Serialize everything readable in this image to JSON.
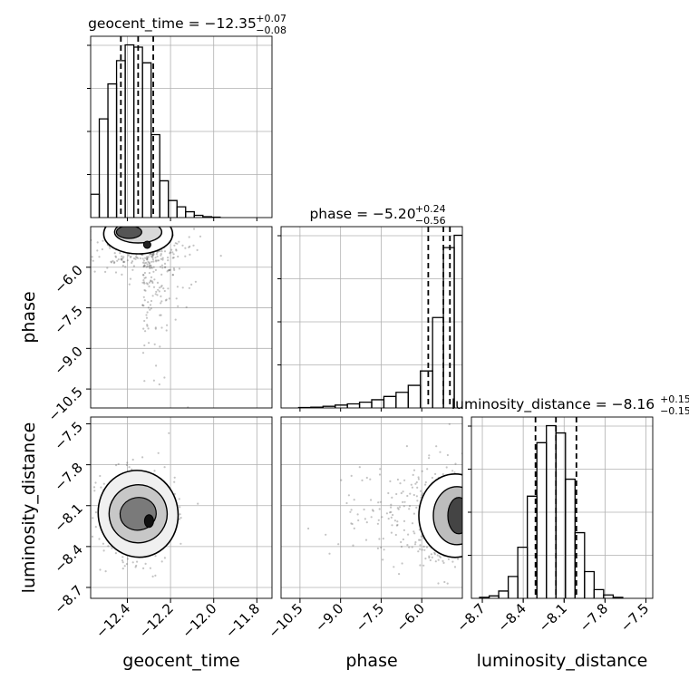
{
  "chart_data": {
    "type": "scatter",
    "figure_kind": "corner plot",
    "parameters": [
      "geocent_time",
      "phase",
      "luminosity_distance"
    ],
    "axis_labels": {
      "x": [
        "geocent_time",
        "phase",
        "luminosity_distance"
      ],
      "y": [
        "phase",
        "luminosity_distance"
      ]
    },
    "grid": true,
    "titles": [
      {
        "param": "geocent_time",
        "prefix": "geocent_time = ",
        "median": "−12.35",
        "plus": "+0.07",
        "minus": "−0.08"
      },
      {
        "param": "phase",
        "prefix": "phase = ",
        "median": "−5.20",
        "plus": "+0.24",
        "minus": "−0.56"
      },
      {
        "param": "luminosity_distance",
        "prefix": "luminosity_distance = ",
        "median": "−8.16",
        "plus": "+0.15",
        "minus": "−0.15"
      }
    ],
    "ranges": {
      "geocent_time": [
        -12.57,
        -11.73
      ],
      "phase": [
        -11.2,
        -4.5
      ],
      "luminosity_distance": [
        -8.78,
        -7.45
      ]
    },
    "ticks": {
      "geocent_time": {
        "values": [
          -12.4,
          -12.2,
          -12.0,
          -11.8
        ],
        "labels": [
          "−12.4",
          "−12.2",
          "−12.0",
          "−11.8"
        ]
      },
      "phase": {
        "values": [
          -10.5,
          -9.0,
          -7.5,
          -6.0
        ],
        "labels": [
          "−10.5",
          "−9.0",
          "−7.5",
          "−6.0"
        ]
      },
      "luminosity_distance": {
        "values": [
          -8.7,
          -8.4,
          -8.1,
          -7.8,
          -7.5
        ],
        "labels": [
          "−8.7",
          "−8.4",
          "−8.1",
          "−7.8",
          "−7.5"
        ]
      }
    },
    "quantiles": {
      "geocent_time": [
        -12.43,
        -12.35,
        -12.28
      ],
      "phase": [
        -5.76,
        -5.2,
        -4.96
      ],
      "luminosity_distance": [
        -8.31,
        -8.16,
        -8.01
      ]
    },
    "histograms": {
      "geocent_time": {
        "edges": [
          -12.57,
          -12.53,
          -12.49,
          -12.45,
          -12.41,
          -12.37,
          -12.33,
          -12.29,
          -12.25,
          -12.21,
          -12.17,
          -12.13,
          -12.09,
          -12.05,
          -12.01,
          -11.97
        ],
        "counts": [
          52,
          220,
          298,
          350,
          385,
          380,
          345,
          185,
          82,
          38,
          24,
          13,
          5,
          2,
          1
        ]
      },
      "phase": {
        "edges": [
          -10.55,
          -10.1,
          -9.65,
          -9.2,
          -8.75,
          -8.3,
          -7.85,
          -7.4,
          -6.95,
          -6.5,
          -6.05,
          -5.6,
          -5.2,
          -4.8,
          -4.5
        ],
        "counts": [
          1,
          2,
          4,
          7,
          10,
          14,
          20,
          28,
          38,
          55,
          90,
          220,
          390,
          420
        ]
      },
      "luminosity_distance": {
        "edges": [
          -8.72,
          -8.65,
          -8.58,
          -8.51,
          -8.44,
          -8.37,
          -8.3,
          -8.23,
          -8.16,
          -8.09,
          -8.02,
          -7.95,
          -7.88,
          -7.81,
          -7.74,
          -7.67
        ],
        "counts": [
          2,
          5,
          15,
          45,
          105,
          210,
          320,
          355,
          340,
          245,
          135,
          55,
          18,
          7,
          2
        ]
      }
    }
  }
}
